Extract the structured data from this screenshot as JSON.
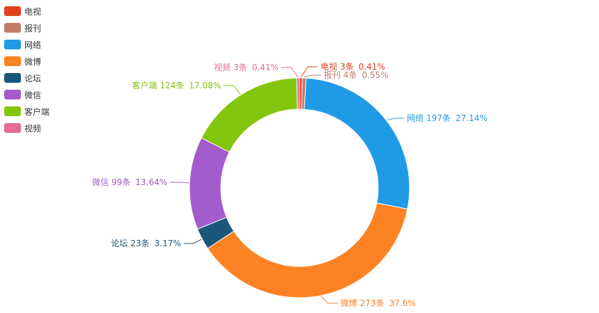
{
  "chart_data": {
    "type": "pie",
    "donut": true,
    "title": "",
    "legend_position": "top-left",
    "series": [
      {
        "name": "电视",
        "value": 3,
        "count_label": "3条",
        "percent_label": "0.41%",
        "color": "#e2401f"
      },
      {
        "name": "报刊",
        "value": 4,
        "count_label": "4条",
        "percent_label": "0.55%",
        "color": "#c27c66"
      },
      {
        "name": "网络",
        "value": 197,
        "count_label": "197条",
        "percent_label": "27.14%",
        "color": "#1f9be6"
      },
      {
        "name": "微博",
        "value": 273,
        "count_label": "273条",
        "percent_label": "37.6%",
        "color": "#fd8224"
      },
      {
        "name": "论坛",
        "value": 23,
        "count_label": "23条",
        "percent_label": "3.17%",
        "color": "#1b577a"
      },
      {
        "name": "微信",
        "value": 99,
        "count_label": "99条",
        "percent_label": "13.64%",
        "color": "#a35ccc"
      },
      {
        "name": "客户端",
        "value": 124,
        "count_label": "124条",
        "percent_label": "17.08%",
        "color": "#81c60d"
      },
      {
        "name": "视频",
        "value": 3,
        "count_label": "3条",
        "percent_label": "0.41%",
        "color": "#e56b97"
      }
    ]
  }
}
